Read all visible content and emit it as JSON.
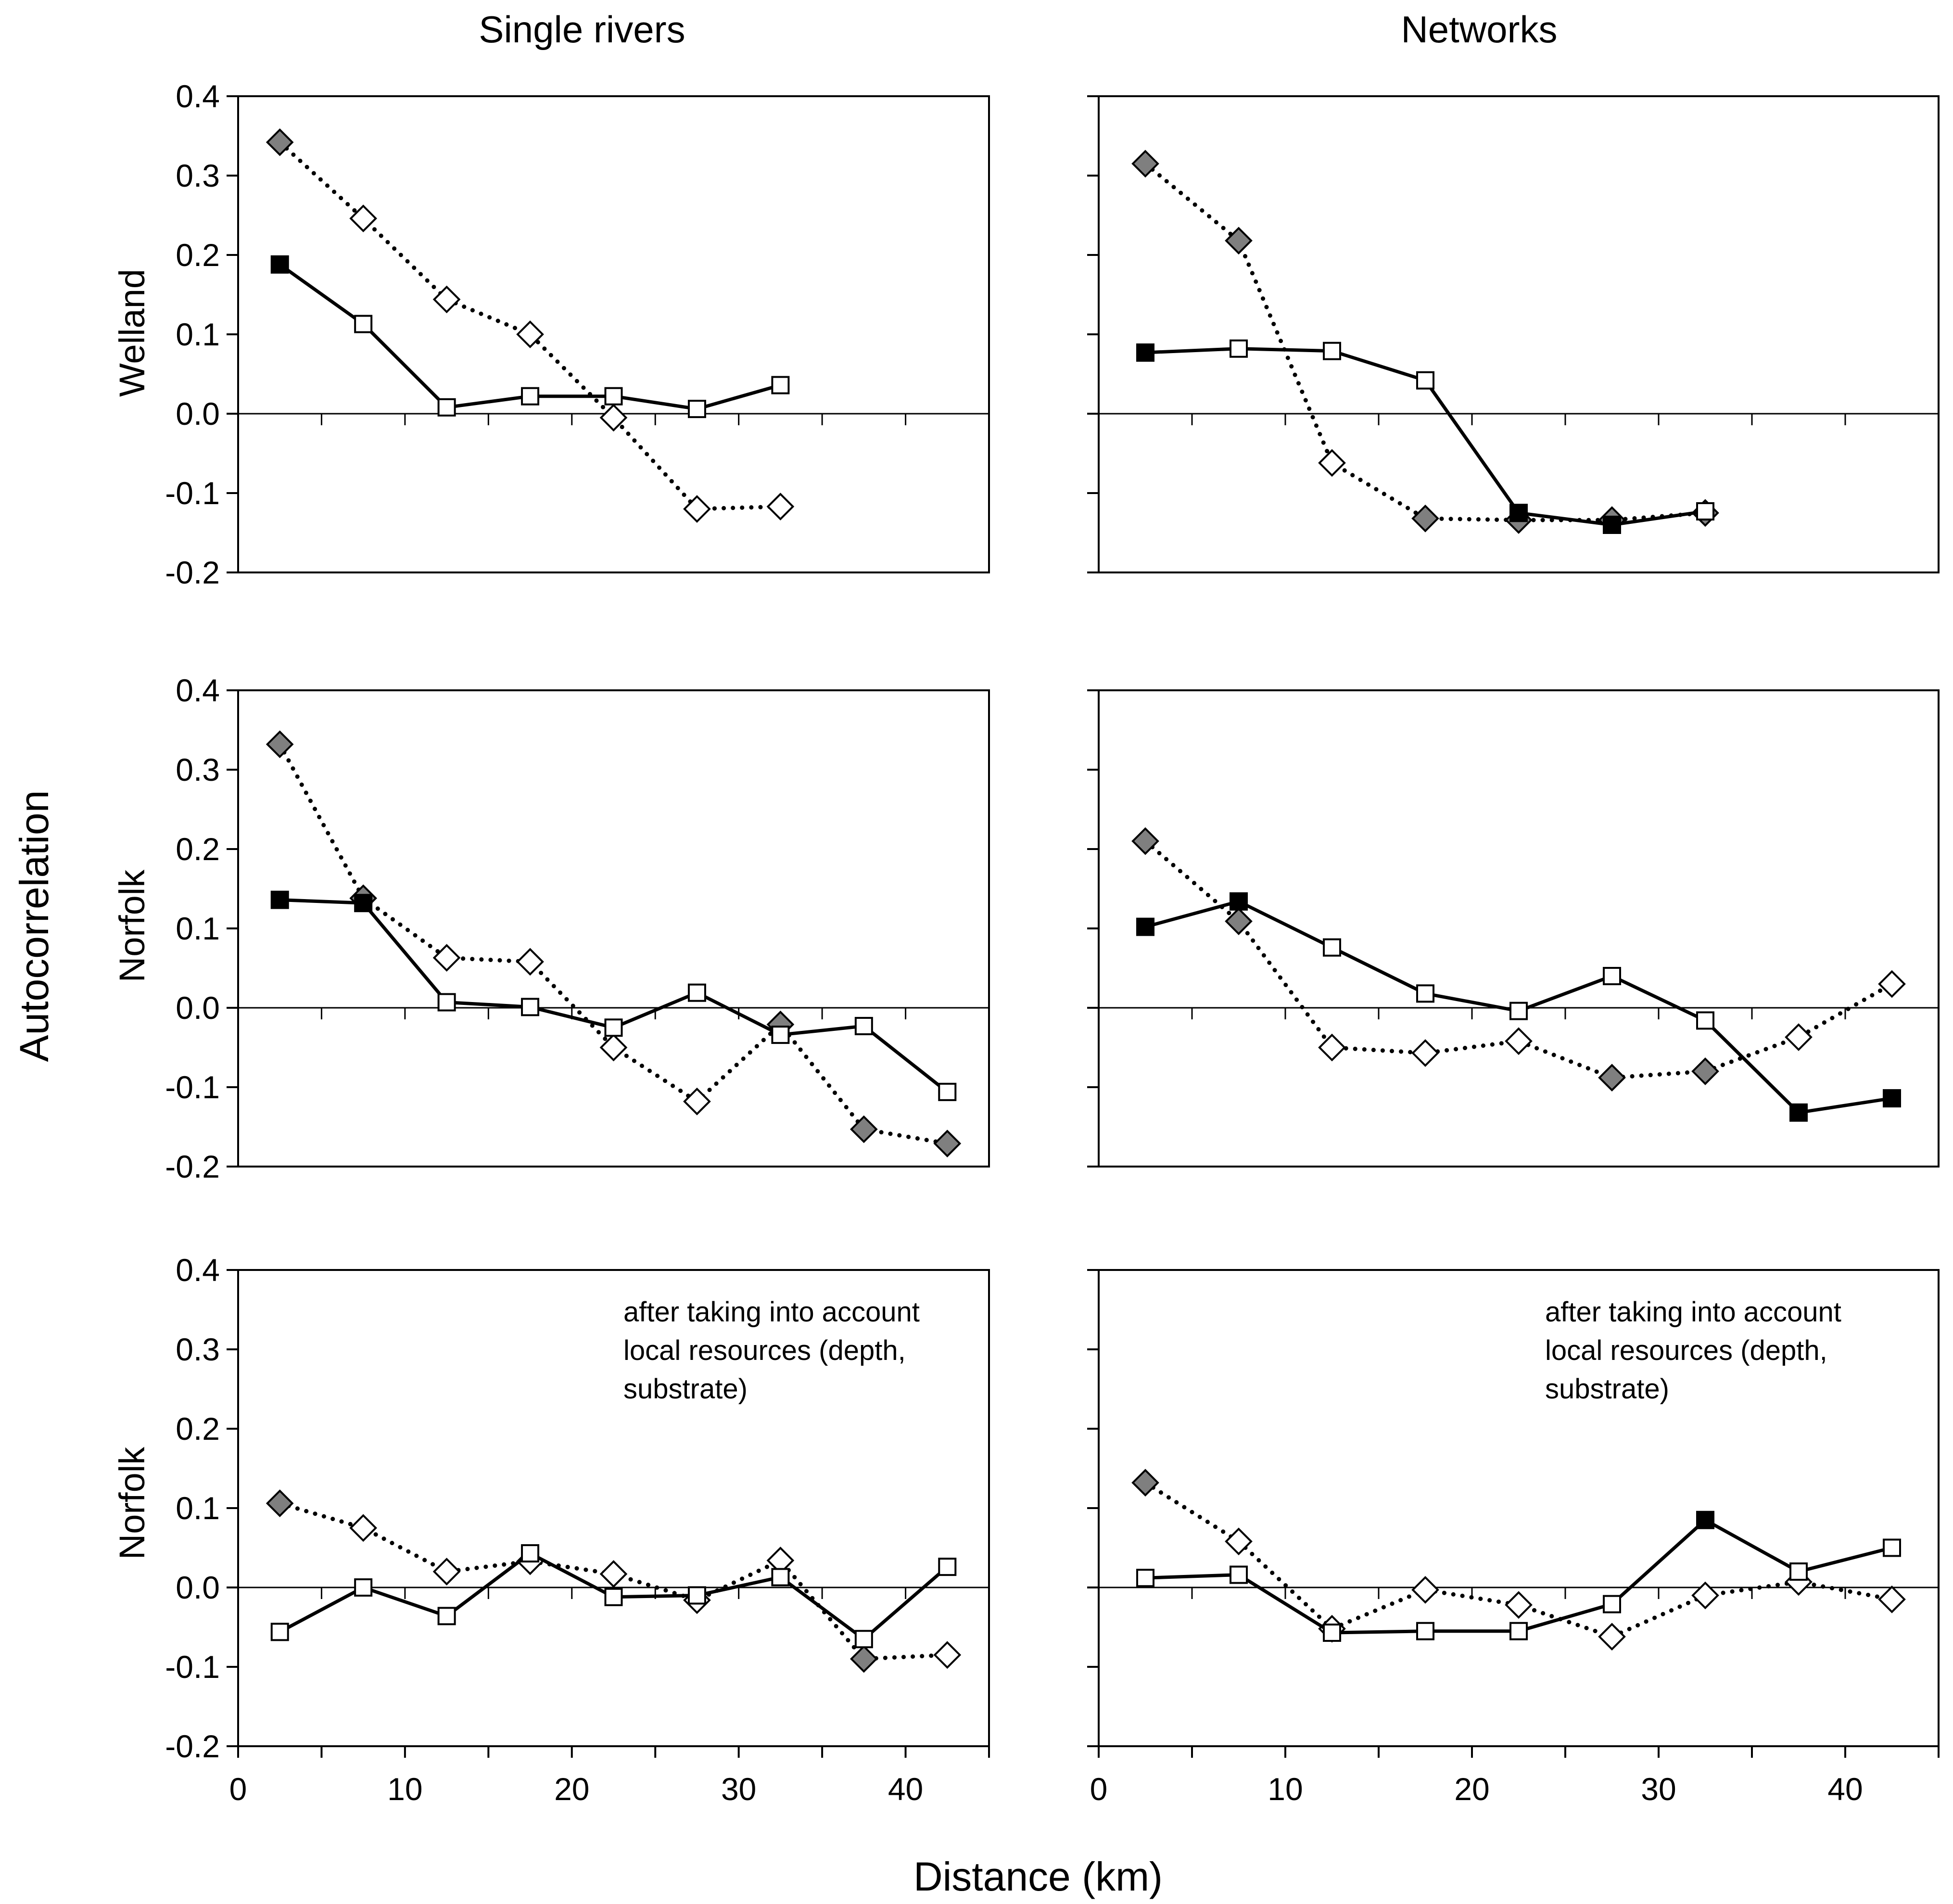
{
  "figure": {
    "column_titles": [
      "Single rivers",
      "Networks"
    ],
    "row_labels": [
      "Welland",
      "Norfolk",
      "Norfolk"
    ],
    "y_axis_title": "Autocorrelation",
    "x_axis_title": "Distance (km)",
    "annotation_lines": [
      "after taking into account",
      "local resources (depth,",
      "substrate)"
    ]
  },
  "chart_data": [
    {
      "id": "welland-single",
      "type": "line",
      "row": 0,
      "col": 0,
      "xlim": [
        0,
        45
      ],
      "ylim": [
        -0.2,
        0.4
      ],
      "x_ticks": [
        "0",
        "10",
        "20",
        "30",
        "40"
      ],
      "y_ticks": [
        "-0.2",
        "-0.1",
        "0.0",
        "0.1",
        "0.2",
        "0.3",
        "0.4"
      ],
      "grid": false,
      "series": [
        {
          "name": "solid squares",
          "style": "solid",
          "marker": "square",
          "x": [
            2.5,
            7.5,
            12.5,
            17.5,
            22.5,
            27.5,
            32.5
          ],
          "y": [
            0.188,
            0.113,
            0.008,
            0.022,
            0.022,
            0.006,
            0.036
          ],
          "filled": [
            true,
            false,
            false,
            false,
            false,
            false,
            false
          ]
        },
        {
          "name": "dotted diamonds",
          "style": "dotted",
          "marker": "diamond",
          "x": [
            2.5,
            7.5,
            12.5,
            17.5,
            22.5,
            27.5,
            32.5
          ],
          "y": [
            0.342,
            0.246,
            0.144,
            0.1,
            -0.005,
            -0.12,
            -0.117
          ],
          "filled": [
            true,
            false,
            false,
            false,
            false,
            false,
            false
          ]
        }
      ]
    },
    {
      "id": "welland-networks",
      "type": "line",
      "row": 0,
      "col": 1,
      "xlim": [
        0,
        45
      ],
      "ylim": [
        -0.2,
        0.4
      ],
      "grid": false,
      "series": [
        {
          "name": "solid squares",
          "style": "solid",
          "marker": "square",
          "x": [
            2.5,
            7.5,
            12.5,
            17.5,
            22.5,
            27.5,
            32.5
          ],
          "y": [
            0.077,
            0.082,
            0.079,
            0.042,
            -0.125,
            -0.14,
            -0.123
          ],
          "filled": [
            true,
            false,
            false,
            false,
            true,
            true,
            false
          ]
        },
        {
          "name": "dotted diamonds",
          "style": "dotted",
          "marker": "diamond",
          "x": [
            2.5,
            7.5,
            12.5,
            17.5,
            22.5,
            27.5,
            32.5
          ],
          "y": [
            0.315,
            0.218,
            -0.062,
            -0.132,
            -0.134,
            -0.134,
            -0.125
          ],
          "filled": [
            true,
            true,
            false,
            true,
            true,
            true,
            true
          ]
        }
      ]
    },
    {
      "id": "norfolk-single",
      "type": "line",
      "row": 1,
      "col": 0,
      "xlim": [
        0,
        45
      ],
      "ylim": [
        -0.2,
        0.4
      ],
      "x_ticks": [
        "0",
        "10",
        "20",
        "30",
        "40"
      ],
      "y_ticks": [
        "-0.2",
        "-0.1",
        "0.0",
        "0.1",
        "0.2",
        "0.3",
        "0.4"
      ],
      "grid": false,
      "series": [
        {
          "name": "solid squares",
          "style": "solid",
          "marker": "square",
          "x": [
            2.5,
            7.5,
            12.5,
            17.5,
            22.5,
            27.5,
            32.5,
            37.5,
            42.5
          ],
          "y": [
            0.136,
            0.132,
            0.007,
            0.001,
            -0.025,
            0.019,
            -0.034,
            -0.023,
            -0.106
          ],
          "filled": [
            true,
            true,
            false,
            false,
            false,
            false,
            false,
            false,
            false
          ]
        },
        {
          "name": "dotted diamonds",
          "style": "dotted",
          "marker": "diamond",
          "x": [
            2.5,
            7.5,
            12.5,
            17.5,
            22.5,
            27.5,
            32.5,
            37.5,
            42.5
          ],
          "y": [
            0.332,
            0.138,
            0.063,
            0.058,
            -0.05,
            -0.118,
            -0.021,
            -0.153,
            -0.171
          ],
          "filled": [
            true,
            true,
            false,
            false,
            false,
            false,
            true,
            true,
            true
          ]
        }
      ]
    },
    {
      "id": "norfolk-networks",
      "type": "line",
      "row": 1,
      "col": 1,
      "xlim": [
        0,
        45
      ],
      "ylim": [
        -0.2,
        0.4
      ],
      "grid": false,
      "series": [
        {
          "name": "solid squares",
          "style": "solid",
          "marker": "square",
          "x": [
            2.5,
            7.5,
            12.5,
            17.5,
            22.5,
            27.5,
            32.5,
            37.5,
            42.5
          ],
          "y": [
            0.102,
            0.134,
            0.076,
            0.018,
            -0.004,
            0.04,
            -0.016,
            -0.132,
            -0.114
          ],
          "filled": [
            true,
            true,
            false,
            false,
            false,
            false,
            false,
            true,
            true
          ]
        },
        {
          "name": "dotted diamonds",
          "style": "dotted",
          "marker": "diamond",
          "x": [
            2.5,
            7.5,
            12.5,
            17.5,
            22.5,
            27.5,
            32.5,
            37.5,
            42.5
          ],
          "y": [
            0.21,
            0.109,
            -0.05,
            -0.057,
            -0.042,
            -0.088,
            -0.08,
            -0.037,
            0.03
          ],
          "filled": [
            true,
            true,
            false,
            false,
            false,
            true,
            true,
            false,
            false
          ]
        }
      ]
    },
    {
      "id": "norfolk-single-resources",
      "type": "line",
      "row": 2,
      "col": 0,
      "xlim": [
        0,
        45
      ],
      "ylim": [
        -0.2,
        0.4
      ],
      "x_ticks": [
        "0",
        "10",
        "20",
        "30",
        "40"
      ],
      "y_ticks": [
        "-0.2",
        "-0.1",
        "0.0",
        "0.1",
        "0.2",
        "0.3",
        "0.4"
      ],
      "grid": false,
      "series": [
        {
          "name": "solid squares",
          "style": "solid",
          "marker": "square",
          "x": [
            2.5,
            7.5,
            12.5,
            17.5,
            22.5,
            27.5,
            32.5,
            37.5,
            42.5
          ],
          "y": [
            -0.056,
            0.0,
            -0.036,
            0.043,
            -0.012,
            -0.01,
            0.013,
            -0.065,
            0.026
          ],
          "filled": [
            false,
            false,
            false,
            false,
            false,
            false,
            false,
            false,
            false
          ]
        },
        {
          "name": "dotted diamonds",
          "style": "dotted",
          "marker": "diamond",
          "x": [
            2.5,
            7.5,
            12.5,
            17.5,
            22.5,
            27.5,
            32.5,
            37.5,
            42.5
          ],
          "y": [
            0.106,
            0.075,
            0.02,
            0.033,
            0.017,
            -0.016,
            0.034,
            -0.09,
            -0.085
          ],
          "filled": [
            true,
            false,
            false,
            false,
            false,
            false,
            false,
            true,
            false
          ]
        }
      ]
    },
    {
      "id": "norfolk-networks-resources",
      "type": "line",
      "row": 2,
      "col": 1,
      "xlim": [
        0,
        45
      ],
      "ylim": [
        -0.2,
        0.4
      ],
      "x_ticks": [
        "0",
        "10",
        "20",
        "30",
        "40"
      ],
      "grid": false,
      "series": [
        {
          "name": "solid squares",
          "style": "solid",
          "marker": "square",
          "x": [
            2.5,
            7.5,
            12.5,
            17.5,
            22.5,
            27.5,
            32.5,
            37.5,
            42.5
          ],
          "y": [
            0.012,
            0.016,
            -0.057,
            -0.055,
            -0.055,
            -0.021,
            0.085,
            0.02,
            0.05
          ],
          "filled": [
            false,
            false,
            false,
            false,
            false,
            false,
            true,
            false,
            false
          ]
        },
        {
          "name": "dotted diamonds",
          "style": "dotted",
          "marker": "diamond",
          "x": [
            2.5,
            7.5,
            12.5,
            17.5,
            22.5,
            27.5,
            32.5,
            37.5,
            42.5
          ],
          "y": [
            0.132,
            0.058,
            -0.052,
            -0.003,
            -0.022,
            -0.062,
            -0.01,
            0.007,
            -0.015
          ],
          "filled": [
            true,
            false,
            false,
            false,
            false,
            false,
            false,
            false,
            false
          ]
        }
      ]
    }
  ]
}
